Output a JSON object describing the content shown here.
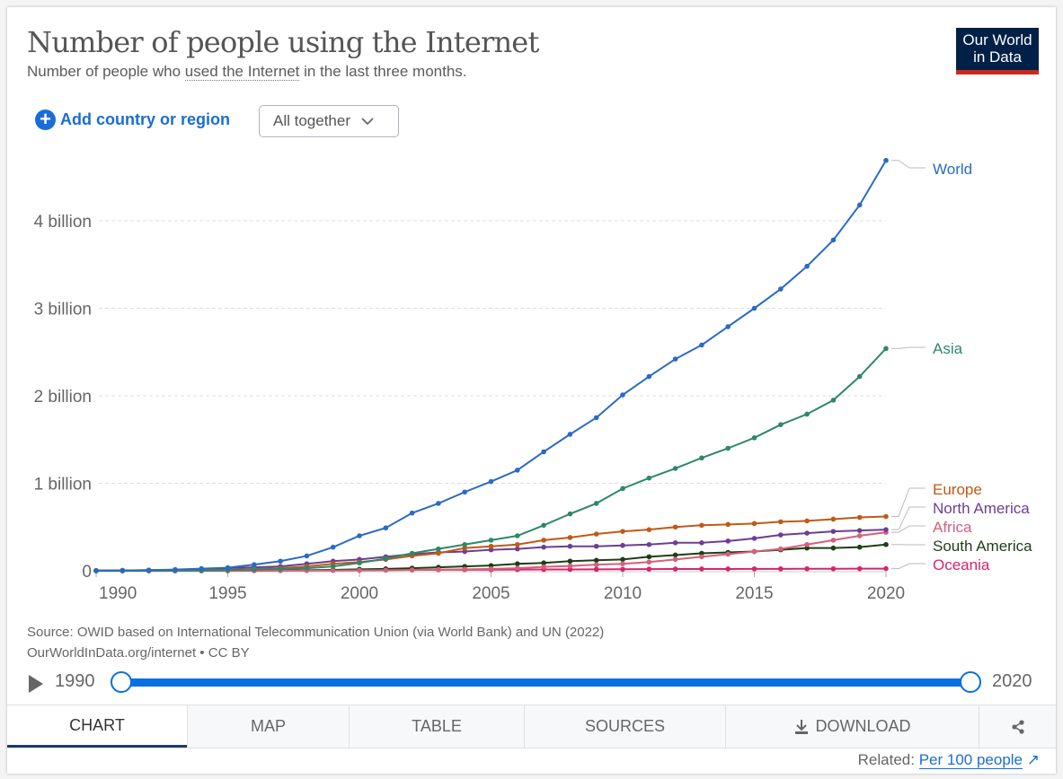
{
  "header": {
    "title": "Number of people using the Internet",
    "subtitle_pre": "Number of people who ",
    "subtitle_link": "used the Internet",
    "subtitle_post": " in the last three months.",
    "logo": "Our World in Data"
  },
  "controls": {
    "add_label": "Add country or region",
    "add_icon": "plus-circle-icon",
    "select_value": "All together"
  },
  "footer": {
    "source": "Source: OWID based on International Telecommunication Union (via World Bank) and UN (2022)",
    "url_license": "OurWorldInData.org/internet • CC BY",
    "related_label": "Related: ",
    "related_link": "Per 100 people"
  },
  "timeline": {
    "start": "1990",
    "end": "2020",
    "range_fraction": [
      0,
      1
    ]
  },
  "tabs": [
    {
      "label": "CHART"
    },
    {
      "label": "MAP"
    },
    {
      "label": "TABLE"
    },
    {
      "label": "SOURCES"
    },
    {
      "label": "DOWNLOAD"
    },
    {
      "label": ""
    }
  ],
  "chart_data": {
    "type": "line",
    "title": "Number of people using the Internet",
    "xlim": [
      1990,
      2020
    ],
    "ylim": [
      0,
      4.7
    ],
    "y_ticks": [
      {
        "v": 0,
        "label": "0"
      },
      {
        "v": 1,
        "label": "1 billion"
      },
      {
        "v": 2,
        "label": "2 billion"
      },
      {
        "v": 3,
        "label": "3 billion"
      },
      {
        "v": 4,
        "label": "4 billion"
      }
    ],
    "x_ticks": [
      1990,
      1995,
      2000,
      2005,
      2010,
      2015,
      2020
    ],
    "grid": "horizontal dashed",
    "legend": "right, end-of-line labels",
    "unit": "billion",
    "x": [
      1990,
      1991,
      1992,
      1993,
      1994,
      1995,
      1996,
      1997,
      1998,
      1999,
      2000,
      2001,
      2002,
      2003,
      2004,
      2005,
      2006,
      2007,
      2008,
      2009,
      2010,
      2011,
      2012,
      2013,
      2014,
      2015,
      2016,
      2017,
      2018,
      2019,
      2020
    ],
    "series": [
      {
        "name": "World",
        "color": "#2a6ac4",
        "values": [
          0.003,
          0.004,
          0.007,
          0.014,
          0.025,
          0.035,
          0.07,
          0.11,
          0.17,
          0.27,
          0.4,
          0.49,
          0.66,
          0.77,
          0.9,
          1.02,
          1.15,
          1.36,
          1.56,
          1.75,
          2.01,
          2.22,
          2.42,
          2.58,
          2.79,
          3.0,
          3.22,
          3.48,
          3.78,
          4.18,
          4.69
        ]
      },
      {
        "name": "Asia",
        "color": "#2e876a",
        "values": [
          0,
          0.0005,
          0.001,
          0.002,
          0.004,
          0.008,
          0.015,
          0.02,
          0.03,
          0.05,
          0.09,
          0.14,
          0.2,
          0.25,
          0.3,
          0.35,
          0.4,
          0.52,
          0.65,
          0.77,
          0.94,
          1.06,
          1.17,
          1.29,
          1.4,
          1.52,
          1.67,
          1.79,
          1.95,
          2.22,
          2.54
        ]
      },
      {
        "name": "Europe",
        "color": "#c05917",
        "values": [
          0.001,
          0.002,
          0.003,
          0.005,
          0.008,
          0.012,
          0.02,
          0.03,
          0.05,
          0.08,
          0.1,
          0.13,
          0.17,
          0.2,
          0.26,
          0.28,
          0.3,
          0.35,
          0.38,
          0.42,
          0.45,
          0.47,
          0.5,
          0.52,
          0.53,
          0.54,
          0.56,
          0.57,
          0.59,
          0.61,
          0.62
        ]
      },
      {
        "name": "North America",
        "color": "#6d3e91",
        "values": [
          0.002,
          0.004,
          0.008,
          0.012,
          0.02,
          0.03,
          0.04,
          0.05,
          0.08,
          0.11,
          0.13,
          0.16,
          0.19,
          0.21,
          0.22,
          0.24,
          0.25,
          0.27,
          0.28,
          0.28,
          0.29,
          0.3,
          0.32,
          0.32,
          0.34,
          0.37,
          0.41,
          0.43,
          0.45,
          0.46,
          0.47
        ]
      },
      {
        "name": "Africa",
        "color": "#d4607a",
        "values": [
          0,
          0,
          0,
          0,
          0,
          0,
          0.001,
          0.001,
          0.002,
          0.003,
          0.005,
          0.007,
          0.01,
          0.013,
          0.017,
          0.022,
          0.03,
          0.045,
          0.055,
          0.07,
          0.08,
          0.1,
          0.13,
          0.16,
          0.19,
          0.22,
          0.25,
          0.3,
          0.35,
          0.4,
          0.44
        ]
      },
      {
        "name": "South America",
        "color": "#1d3e15",
        "values": [
          0,
          0,
          0,
          0,
          0,
          0.001,
          0.002,
          0.004,
          0.007,
          0.01,
          0.017,
          0.022,
          0.03,
          0.04,
          0.05,
          0.06,
          0.08,
          0.09,
          0.11,
          0.12,
          0.13,
          0.16,
          0.18,
          0.2,
          0.21,
          0.22,
          0.24,
          0.26,
          0.26,
          0.27,
          0.3
        ]
      },
      {
        "name": "Oceania",
        "color": "#d8246b",
        "values": [
          0,
          0,
          0,
          0.001,
          0.001,
          0.002,
          0.003,
          0.005,
          0.006,
          0.007,
          0.008,
          0.009,
          0.01,
          0.011,
          0.012,
          0.013,
          0.014,
          0.015,
          0.016,
          0.017,
          0.018,
          0.019,
          0.02,
          0.021,
          0.021,
          0.022,
          0.022,
          0.023,
          0.023,
          0.024,
          0.025
        ]
      }
    ]
  }
}
